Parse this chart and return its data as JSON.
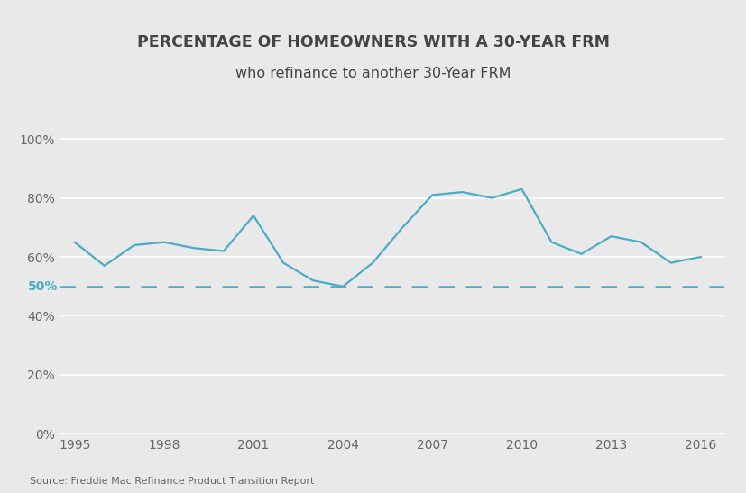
{
  "title_line1": "PERCENTAGE OF HOMEOWNERS WITH A 30-YEAR FRM",
  "title_line2": "who refinance to another 30-Year FRM",
  "years": [
    1995,
    1996,
    1997,
    1998,
    1999,
    2000,
    2001,
    2002,
    2003,
    2004,
    2005,
    2006,
    2007,
    2008,
    2009,
    2010,
    2011,
    2012,
    2013,
    2014,
    2015,
    2016
  ],
  "values": [
    65,
    57,
    64,
    65,
    63,
    62,
    74,
    58,
    52,
    50,
    58,
    70,
    81,
    82,
    80,
    83,
    65,
    61,
    67,
    65,
    58,
    60
  ],
  "line_color": "#4bacc6",
  "dashed_line_y": 50,
  "dashed_color": "#4bacc6",
  "dashed_label": "50%",
  "yticks": [
    0,
    20,
    40,
    60,
    80,
    100
  ],
  "xticks": [
    1995,
    1998,
    2001,
    2004,
    2007,
    2010,
    2013,
    2016
  ],
  "ylim": [
    0,
    107
  ],
  "xlim": [
    1994.5,
    2016.8
  ],
  "source_text": "Source: Freddie Mac Refinance Product Transition Report",
  "background_color": "#e9e9e9",
  "grid_color": "#ffffff",
  "title_fontsize": 12.5,
  "subtitle_fontsize": 11.5,
  "tick_fontsize": 10,
  "source_fontsize": 8,
  "title_color": "#444444",
  "tick_color": "#666666"
}
